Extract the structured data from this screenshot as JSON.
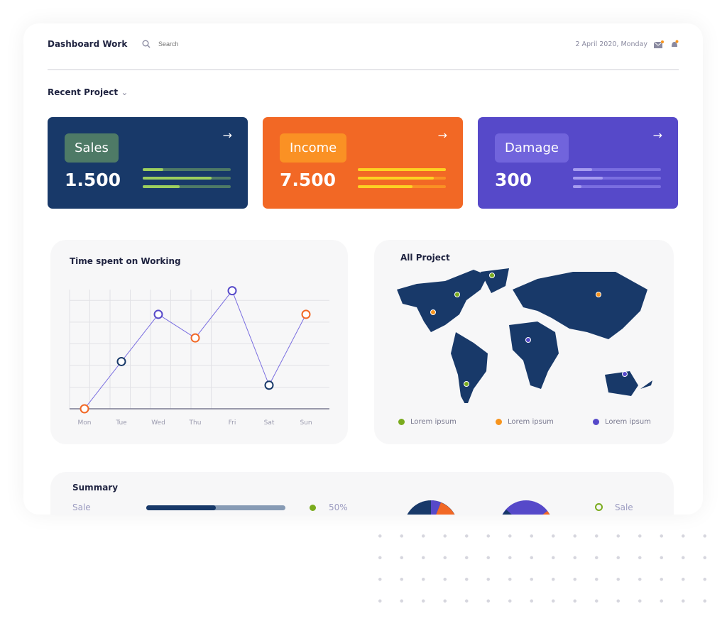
{
  "header": {
    "title": "Dashboard Work",
    "search_placeholder": "Search",
    "date": "2 April 2020, Monday"
  },
  "section": {
    "recent_label": "Recent Project"
  },
  "cards": [
    {
      "label": "Sales",
      "value": "1.500",
      "bg": "#183969",
      "tag": "#4e7a66",
      "track": "#4e7a66",
      "fill": "#9ccf5e",
      "progress": [
        23,
        78,
        42
      ]
    },
    {
      "label": "Income",
      "value": "7.500",
      "bg": "#f26825",
      "tag": "#fa9124",
      "track": "#fa9124",
      "fill": "#fdd223",
      "progress": [
        100,
        86,
        62
      ]
    },
    {
      "label": "Damage",
      "value": "300",
      "bg": "#5649c9",
      "tag": "#7164dc",
      "track": "#7a6ee0",
      "fill": "#a69cf0",
      "progress": [
        22,
        34,
        10
      ]
    }
  ],
  "chart_data": {
    "type": "line",
    "title": "Time spent on Working",
    "categories": [
      "Mon",
      "Tue",
      "Wed",
      "Thu",
      "Fri",
      "Sat",
      "Sun"
    ],
    "values": [
      0,
      2,
      4,
      3,
      5,
      1,
      4
    ],
    "ylim": [
      0,
      5.5
    ],
    "grid": true,
    "point_colors": [
      "#f26825",
      "#183969",
      "#5649c9",
      "#f26825",
      "#5649c9",
      "#183969",
      "#f26825"
    ],
    "line_color": "#7b6fe0"
  },
  "map": {
    "title": "All Project",
    "legend": [
      {
        "label": "Lorem ipsum",
        "color": "#7aab1e"
      },
      {
        "label": "Lorem ipsum",
        "color": "#f7941d"
      },
      {
        "label": "Lorem ipsum",
        "color": "#5649c9"
      }
    ]
  },
  "summary": {
    "title": "Summary",
    "row_label": "Sale",
    "progress": 50,
    "percent": "50%",
    "legend_label": "Sale",
    "dot_color": "#7aab1e"
  }
}
